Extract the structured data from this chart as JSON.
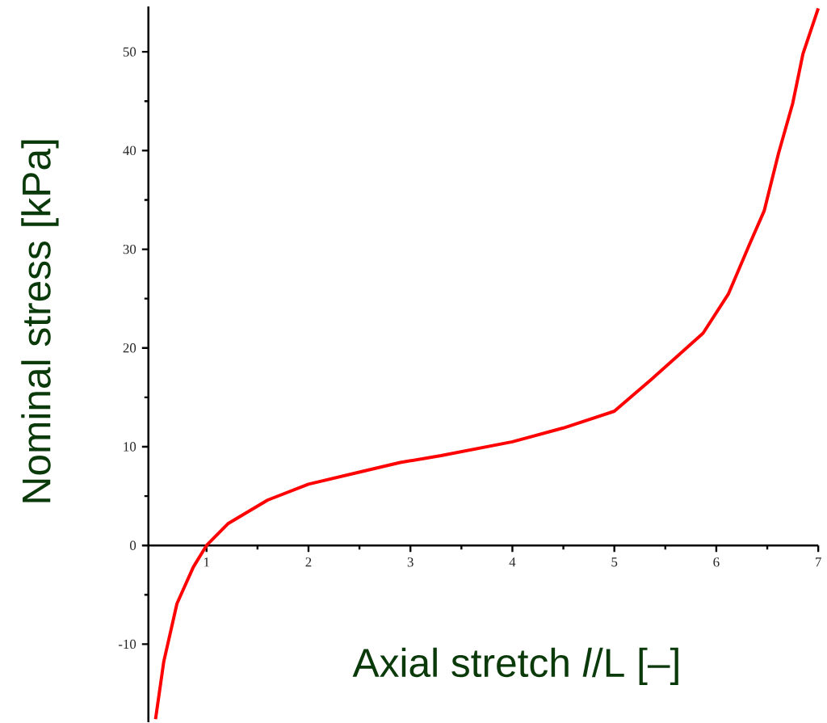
{
  "chart_data": {
    "type": "line",
    "xlabel": "Axial stretch *l*/L  [–]",
    "ylabel": "Nominal stress  [kPa]",
    "xlim": [
      0.43,
      7.0
    ],
    "ylim": [
      -17.9,
      54.6
    ],
    "xticks": [
      1,
      2,
      3,
      4,
      5,
      6,
      7
    ],
    "yticks": [
      {
        "value": -10,
        "label": "-10"
      },
      0,
      10,
      20,
      30,
      40,
      50
    ],
    "grid": false,
    "series": [
      {
        "color": "#ff0000",
        "x": [
          0.5,
          0.58,
          0.71,
          0.87,
          1.0,
          1.21,
          1.6,
          2.0,
          2.53,
          2.9,
          3.3,
          4.0,
          4.5,
          5.0,
          5.36,
          5.87,
          6.12,
          6.33,
          6.47,
          6.61,
          6.75,
          6.85,
          7.0
        ],
        "values": [
          -17.6,
          -11.8,
          -5.9,
          -2.2,
          0,
          2.2,
          4.6,
          6.2,
          7.5,
          8.4,
          9.1,
          10.5,
          11.9,
          13.6,
          16.8,
          21.5,
          25.5,
          30.6,
          33.9,
          39.7,
          44.8,
          49.8,
          54.4
        ]
      }
    ]
  }
}
